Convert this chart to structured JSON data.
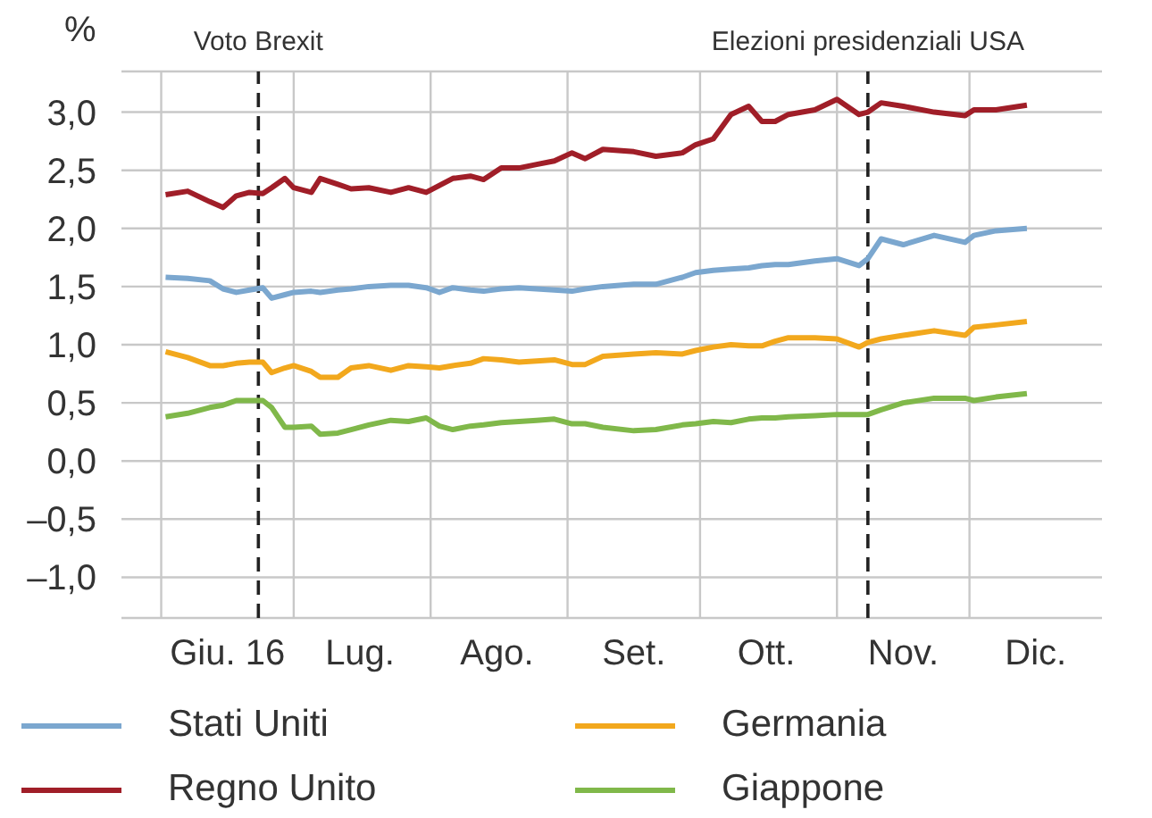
{
  "chart_data": {
    "type": "line",
    "ylabel": "%",
    "x": [
      "--06-02",
      "--06-07",
      "--06-12",
      "--06-15",
      "--06-18",
      "--06-21",
      "--06-24",
      "--06-26",
      "--06-29",
      "--07-01",
      "--07-05",
      "--07-07",
      "--07-11",
      "--07-14",
      "--07-18",
      "--07-23",
      "--07-27",
      "--07-31",
      "--08-03",
      "--08-06",
      "--08-10",
      "--08-13",
      "--08-17",
      "--08-21",
      "--08-25",
      "--08-29",
      "--09-02",
      "--09-05",
      "--09-09",
      "--09-16",
      "--09-21",
      "--09-27",
      "--09-30",
      "--10-04",
      "--10-08",
      "--10-12",
      "--10-15",
      "--10-18",
      "--10-21",
      "--10-27",
      "--11-01",
      "--11-06",
      "--11-08",
      "--11-11",
      "--11-16",
      "--11-23",
      "--11-30",
      "--12-02",
      "--12-07",
      "--12-14"
    ],
    "series": [
      {
        "name": "Stati Uniti",
        "color": "#7ba7cf",
        "values": [
          1.58,
          1.57,
          1.55,
          1.48,
          1.45,
          1.47,
          1.49,
          1.4,
          1.43,
          1.45,
          1.46,
          1.45,
          1.47,
          1.48,
          1.5,
          1.51,
          1.51,
          1.49,
          1.45,
          1.49,
          1.47,
          1.46,
          1.48,
          1.49,
          1.48,
          1.47,
          1.46,
          1.48,
          1.5,
          1.52,
          1.52,
          1.58,
          1.62,
          1.64,
          1.65,
          1.66,
          1.68,
          1.69,
          1.69,
          1.72,
          1.74,
          1.68,
          1.74,
          1.91,
          1.86,
          1.94,
          1.88,
          1.94,
          1.98,
          2.0
        ]
      },
      {
        "name": "Regno Unito",
        "color": "#a01e28",
        "values": [
          2.29,
          2.32,
          2.23,
          2.18,
          2.28,
          2.31,
          2.3,
          2.35,
          2.43,
          2.35,
          2.31,
          2.43,
          2.38,
          2.34,
          2.35,
          2.31,
          2.35,
          2.31,
          2.37,
          2.43,
          2.45,
          2.42,
          2.52,
          2.52,
          2.55,
          2.58,
          2.65,
          2.6,
          2.68,
          2.66,
          2.62,
          2.65,
          2.72,
          2.77,
          2.98,
          3.05,
          2.92,
          2.92,
          2.98,
          3.02,
          3.11,
          2.98,
          3.0,
          3.08,
          3.05,
          3.0,
          2.97,
          3.02,
          3.02,
          3.06
        ]
      },
      {
        "name": "Germania",
        "color": "#f2a81d",
        "values": [
          0.94,
          0.89,
          0.82,
          0.82,
          0.84,
          0.85,
          0.85,
          0.76,
          0.8,
          0.82,
          0.77,
          0.72,
          0.72,
          0.8,
          0.82,
          0.78,
          0.82,
          0.81,
          0.8,
          0.82,
          0.84,
          0.88,
          0.87,
          0.85,
          0.86,
          0.87,
          0.83,
          0.83,
          0.9,
          0.92,
          0.93,
          0.92,
          0.95,
          0.98,
          1.0,
          0.99,
          0.99,
          1.03,
          1.06,
          1.06,
          1.05,
          0.98,
          1.02,
          1.05,
          1.08,
          1.12,
          1.08,
          1.15,
          1.17,
          1.2
        ]
      },
      {
        "name": "Giappone",
        "color": "#80b84a",
        "values": [
          0.38,
          0.41,
          0.46,
          0.48,
          0.52,
          0.52,
          0.52,
          0.46,
          0.29,
          0.29,
          0.3,
          0.23,
          0.24,
          0.27,
          0.31,
          0.35,
          0.34,
          0.37,
          0.3,
          0.27,
          0.3,
          0.31,
          0.33,
          0.34,
          0.35,
          0.36,
          0.32,
          0.32,
          0.29,
          0.26,
          0.27,
          0.31,
          0.32,
          0.34,
          0.33,
          0.36,
          0.37,
          0.37,
          0.38,
          0.39,
          0.4,
          0.4,
          0.4,
          0.44,
          0.5,
          0.54,
          0.54,
          0.52,
          0.55,
          0.58
        ]
      }
    ],
    "xlim": [
      "--05-23",
      "--12-31"
    ],
    "xticks": [
      {
        "value": "--06-01",
        "label": null
      },
      {
        "value": "--06-16",
        "label": "Giu. 16"
      },
      {
        "value": "--07-01",
        "label": null
      },
      {
        "value": "--07-16",
        "label": "Lug."
      },
      {
        "value": "--08-01",
        "label": null
      },
      {
        "value": "--08-16",
        "label": "Ago."
      },
      {
        "value": "--09-01",
        "label": null
      },
      {
        "value": "--09-16",
        "label": "Set."
      },
      {
        "value": "--10-01",
        "label": null
      },
      {
        "value": "--10-16",
        "label": "Ott."
      },
      {
        "value": "--11-01",
        "label": null
      },
      {
        "value": "--11-16",
        "label": "Nov."
      },
      {
        "value": "--12-01",
        "label": null
      },
      {
        "value": "--12-16",
        "label": "Dic."
      }
    ],
    "ylim": [
      -1.35,
      3.35
    ],
    "yticks": [
      {
        "value": -1.0,
        "label": "–1,0"
      },
      {
        "value": -0.5,
        "label": "–0,5"
      },
      {
        "value": 0,
        "label": "0,0"
      },
      {
        "value": 0.5,
        "label": "0,5"
      },
      {
        "value": 1.0,
        "label": "1,0"
      },
      {
        "value": 1.5,
        "label": "1,5"
      },
      {
        "value": 2.0,
        "label": "2,0"
      },
      {
        "value": 2.5,
        "label": "2,5"
      },
      {
        "value": 3.0,
        "label": "3,0"
      }
    ],
    "ref_lines": [
      {
        "axis": "x",
        "value": "--06-23",
        "label": "Voto Brexit",
        "color": "#222222",
        "line_style": "dashed"
      },
      {
        "axis": "x",
        "value": "--11-08",
        "label": "Elezioni presidenziali USA",
        "color": "#222222",
        "line_style": "dashed"
      }
    ],
    "grid": true,
    "legend": "bottom",
    "marker": "none",
    "line_style": "solid"
  }
}
